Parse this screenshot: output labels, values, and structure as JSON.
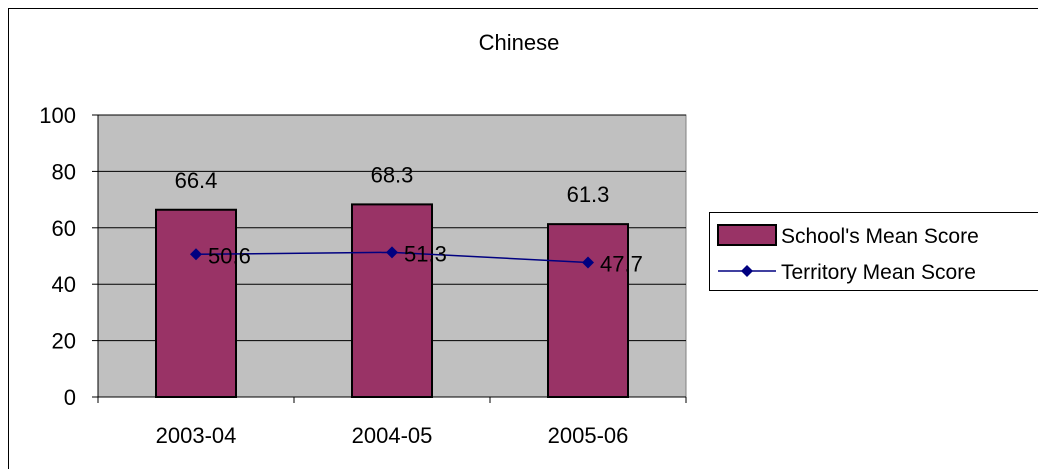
{
  "chart_data": {
    "type": "bar",
    "title": "Chinese",
    "xlabel": "",
    "ylabel": "",
    "categories": [
      "2003-04",
      "2004-05",
      "2005-06"
    ],
    "ylim": [
      0,
      100
    ],
    "yticks": [
      0,
      20,
      40,
      60,
      80,
      100
    ],
    "ytick_labels": [
      "0",
      "20",
      "40",
      "60",
      "80",
      "100"
    ],
    "grid": true,
    "legend_position": "right",
    "series": [
      {
        "name": "School's Mean Score",
        "kind": "bar",
        "color": "#993366",
        "values": [
          66.4,
          68.3,
          61.3
        ],
        "labels": [
          "66.4",
          "68.3",
          "61.3"
        ]
      },
      {
        "name": "Territory Mean Score",
        "kind": "line",
        "color": "#000080",
        "marker": "diamond",
        "values": [
          50.6,
          51.3,
          47.7
        ],
        "labels": [
          "50.6",
          "51.3",
          "47.7"
        ]
      }
    ],
    "plot_background": "#c0c0c0"
  }
}
